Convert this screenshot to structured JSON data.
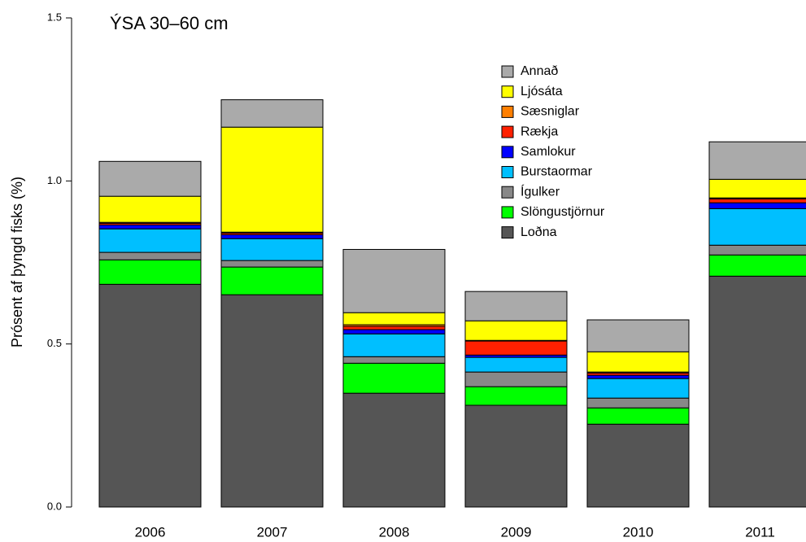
{
  "chart_data": {
    "type": "stacked_bar",
    "title": "ÝSA 30–60 cm",
    "y_label": "Prósent af þyngd fisks (%)",
    "categories": [
      "2006",
      "2007",
      "2008",
      "2009",
      "2010",
      "2011"
    ],
    "ylim": [
      0,
      1.5
    ],
    "yticks": [
      {
        "value": 0,
        "label": "0.0"
      },
      0.5,
      {
        "value": 1,
        "label": "1.0"
      },
      1.5
    ],
    "legend": "top-right",
    "series": [
      {
        "name": "Loðna",
        "color": "#555555",
        "values": [
          0.683,
          0.651,
          0.349,
          0.312,
          0.254,
          0.708
        ]
      },
      {
        "name": "Slöngustjörnur",
        "color": "#00ff00",
        "values": [
          0.075,
          0.085,
          0.092,
          0.057,
          0.05,
          0.065
        ]
      },
      {
        "name": "Ígulker",
        "color": "#888888",
        "values": [
          0.023,
          0.02,
          0.02,
          0.045,
          0.03,
          0.03
        ]
      },
      {
        "name": "Burstaormar",
        "color": "#00bfff",
        "values": [
          0.072,
          0.067,
          0.07,
          0.045,
          0.06,
          0.112
        ]
      },
      {
        "name": "Samlokur",
        "color": "#0000ff",
        "values": [
          0.012,
          0.012,
          0.013,
          0.007,
          0.01,
          0.018
        ]
      },
      {
        "name": "Rækja",
        "color": "#ff2000",
        "values": [
          0.005,
          0.005,
          0.01,
          0.043,
          0.007,
          0.012
        ]
      },
      {
        "name": "Sæsniglar",
        "color": "#ff7f00",
        "values": [
          0.003,
          0.003,
          0.005,
          0.002,
          0.003,
          0.003
        ]
      },
      {
        "name": "Ljósáta",
        "color": "#ffff00",
        "values": [
          0.08,
          0.322,
          0.037,
          0.06,
          0.062,
          0.057
        ]
      },
      {
        "name": "Annað",
        "color": "#aaaaaa",
        "values": [
          0.107,
          0.084,
          0.194,
          0.09,
          0.098,
          0.115
        ]
      }
    ]
  }
}
